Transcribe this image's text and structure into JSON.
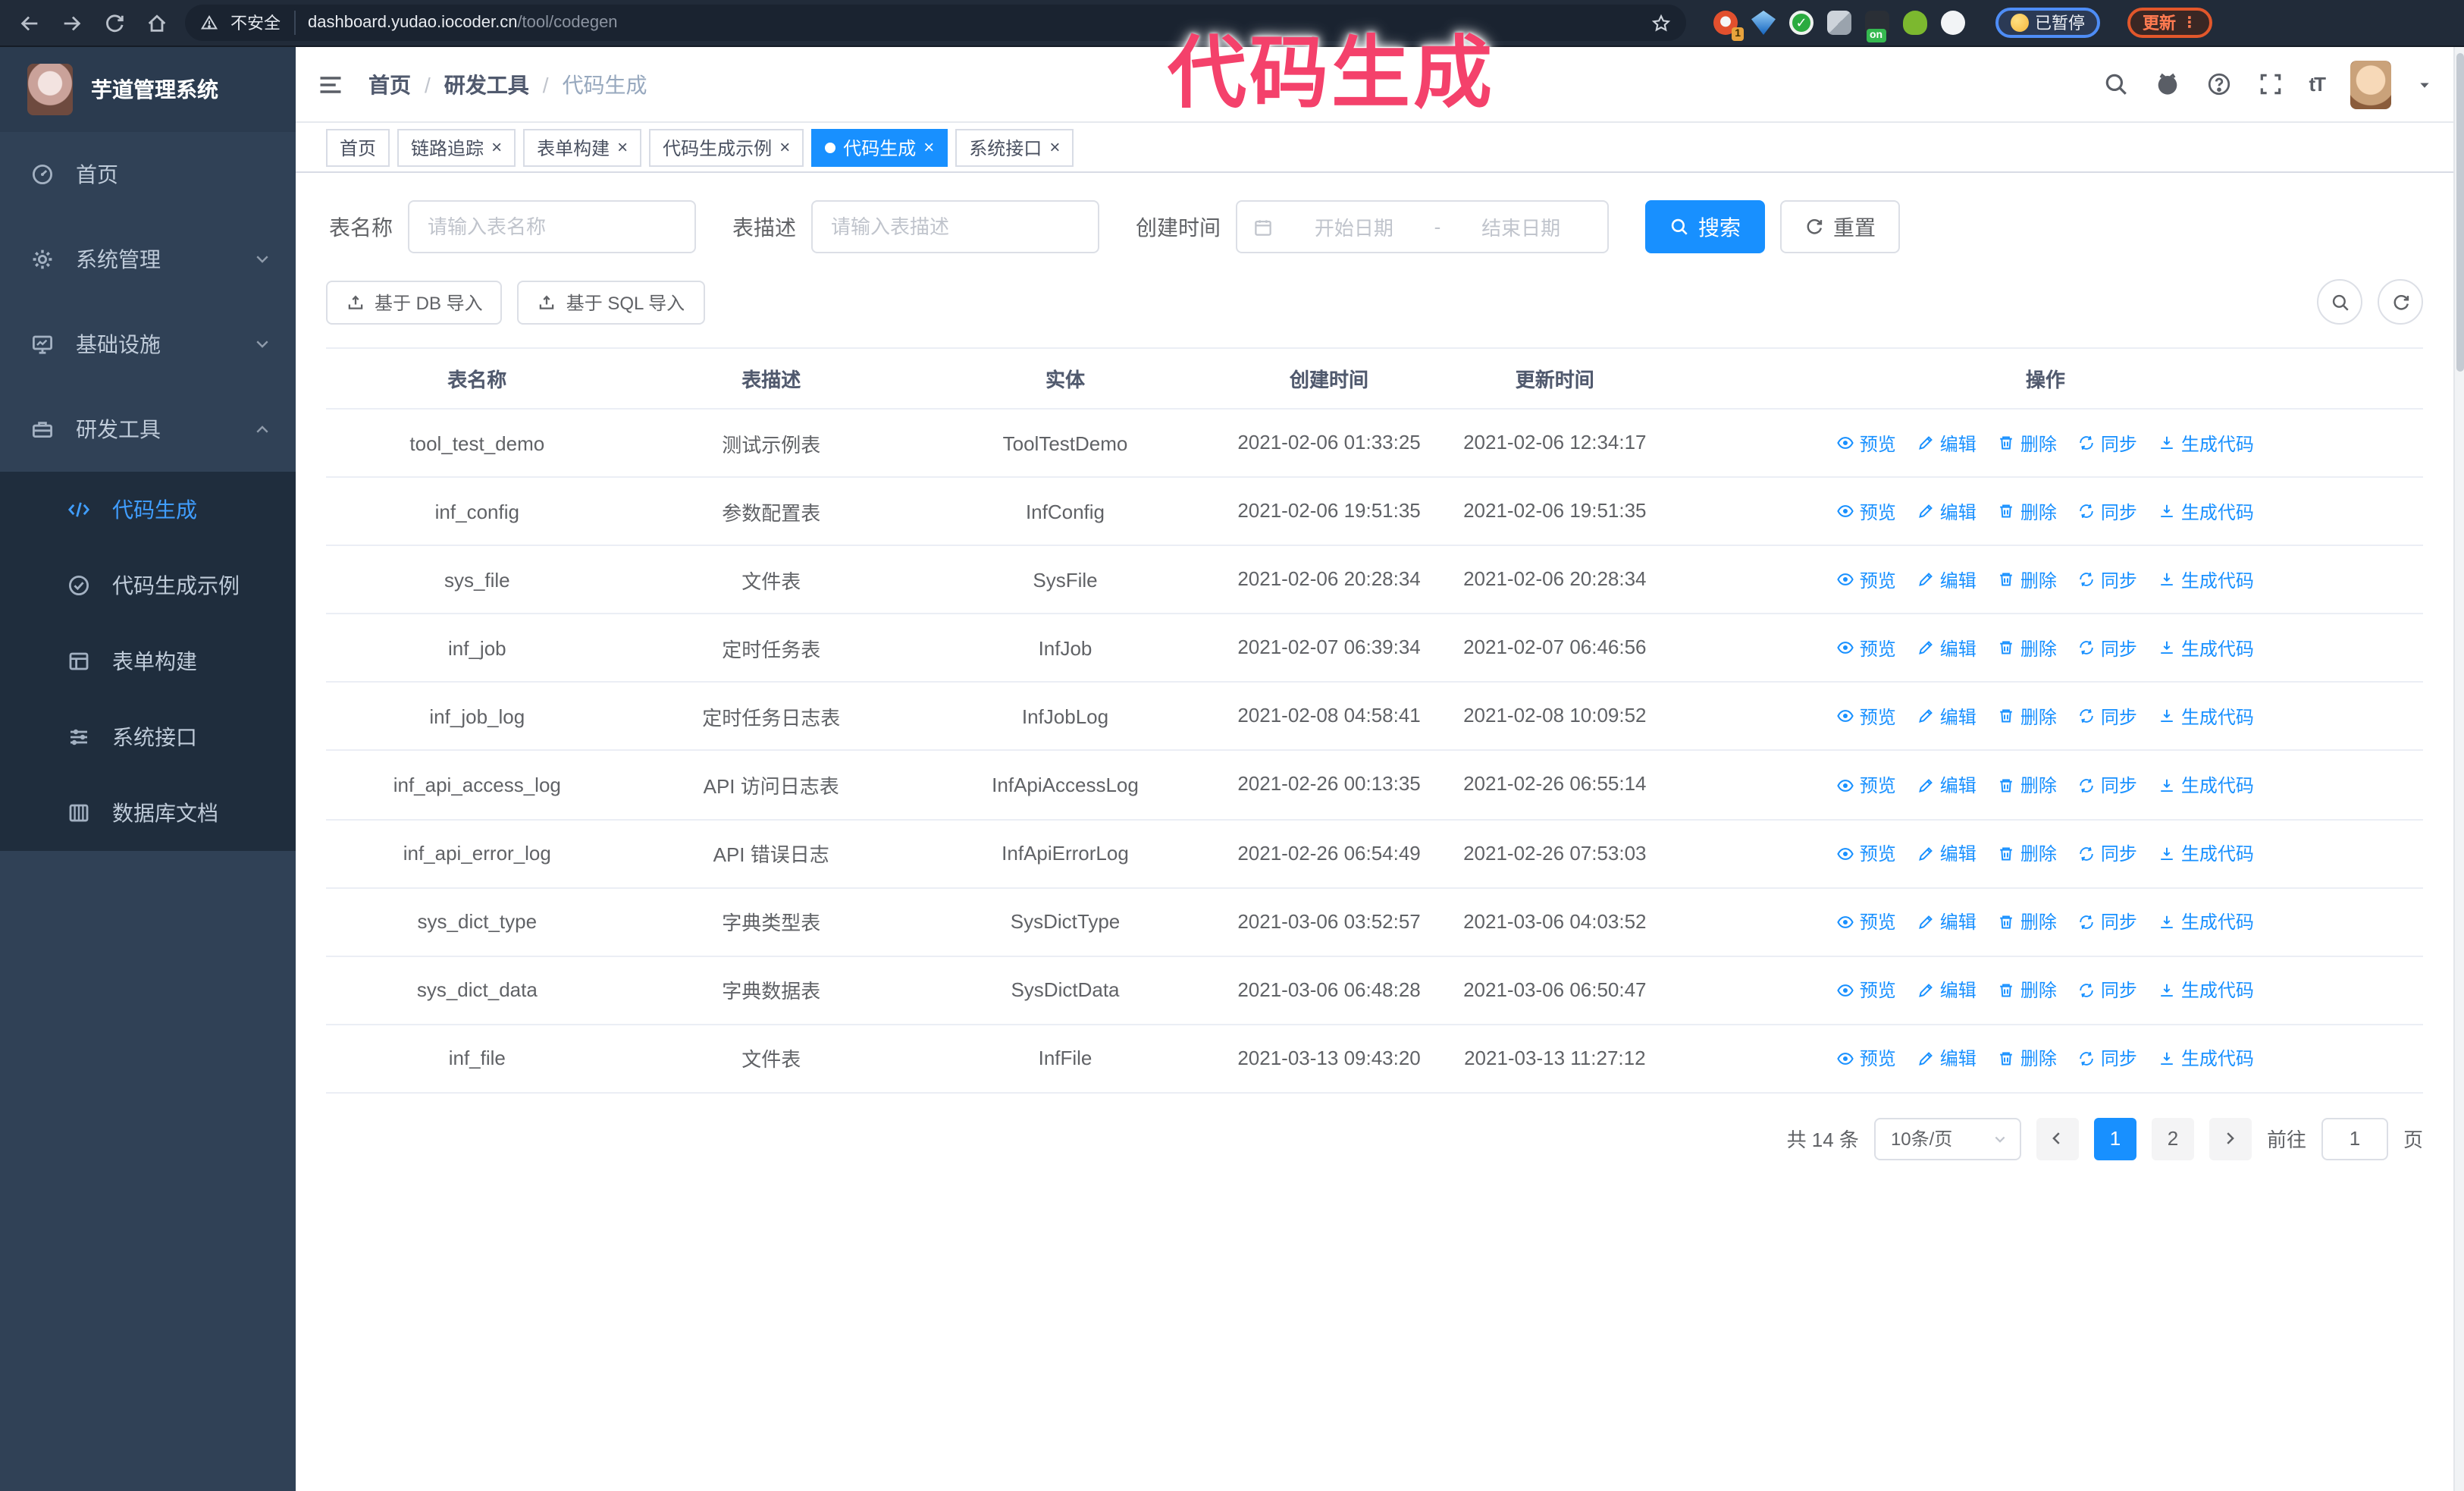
{
  "browser": {
    "security_label": "不安全",
    "url_host": "dashboard.yudao.iocoder.cn",
    "url_path": "/tool/codegen",
    "extension_badge": "1",
    "extension_on_badge": "on",
    "paused_badge": "已暂停",
    "update_button": "更新",
    "update_menu_dots": "⋮"
  },
  "watermark": "代码生成",
  "sidebar": {
    "title": "芋道管理系统",
    "items": [
      {
        "label": "首页",
        "icon": "dashboard",
        "chevron": null
      },
      {
        "label": "系统管理",
        "icon": "gear",
        "chevron": "down"
      },
      {
        "label": "基础设施",
        "icon": "monitor",
        "chevron": "down"
      },
      {
        "label": "研发工具",
        "icon": "toolbox",
        "chevron": "up"
      }
    ],
    "submenu": [
      {
        "label": "代码生成",
        "icon": "code",
        "active": true
      },
      {
        "label": "代码生成示例",
        "icon": "check-circle",
        "active": false
      },
      {
        "label": "表单构建",
        "icon": "form",
        "active": false
      },
      {
        "label": "系统接口",
        "icon": "sliders",
        "active": false
      },
      {
        "label": "数据库文档",
        "icon": "db-doc",
        "active": false
      }
    ]
  },
  "breadcrumb": [
    "首页",
    "研发工具",
    "代码生成"
  ],
  "tabs": [
    {
      "label": "首页",
      "closable": false,
      "active": false
    },
    {
      "label": "链路追踪",
      "closable": true,
      "active": false
    },
    {
      "label": "表单构建",
      "closable": true,
      "active": false
    },
    {
      "label": "代码生成示例",
      "closable": true,
      "active": false
    },
    {
      "label": "代码生成",
      "closable": true,
      "active": true
    },
    {
      "label": "系统接口",
      "closable": true,
      "active": false
    }
  ],
  "search_form": {
    "table_name_label": "表名称",
    "table_name_placeholder": "请输入表名称",
    "table_desc_label": "表描述",
    "table_desc_placeholder": "请输入表描述",
    "create_time_label": "创建时间",
    "start_placeholder": "开始日期",
    "range_separator": "-",
    "end_placeholder": "结束日期",
    "search_button": "搜索",
    "reset_button": "重置"
  },
  "toolbar": {
    "import_db_button": "基于 DB 导入",
    "import_sql_button": "基于 SQL 导入"
  },
  "table": {
    "columns": [
      "表名称",
      "表描述",
      "实体",
      "创建时间",
      "更新时间",
      "操作"
    ],
    "action_labels": [
      "预览",
      "编辑",
      "删除",
      "同步",
      "生成代码"
    ],
    "rows": [
      {
        "name": "tool_test_demo",
        "desc": "测试示例表",
        "entity": "ToolTestDemo",
        "created": "2021-02-06 01:33:25",
        "updated": "2021-02-06 12:34:17"
      },
      {
        "name": "inf_config",
        "desc": "参数配置表",
        "entity": "InfConfig",
        "created": "2021-02-06 19:51:35",
        "updated": "2021-02-06 19:51:35"
      },
      {
        "name": "sys_file",
        "desc": "文件表",
        "entity": "SysFile",
        "created": "2021-02-06 20:28:34",
        "updated": "2021-02-06 20:28:34"
      },
      {
        "name": "inf_job",
        "desc": "定时任务表",
        "entity": "InfJob",
        "created": "2021-02-07 06:39:34",
        "updated": "2021-02-07 06:46:56"
      },
      {
        "name": "inf_job_log",
        "desc": "定时任务日志表",
        "entity": "InfJobLog",
        "created": "2021-02-08 04:58:41",
        "updated": "2021-02-08 10:09:52"
      },
      {
        "name": "inf_api_access_log",
        "desc": "API 访问日志表",
        "entity": "InfApiAccessLog",
        "created": "2021-02-26 00:13:35",
        "updated": "2021-02-26 06:55:14"
      },
      {
        "name": "inf_api_error_log",
        "desc": "API 错误日志",
        "entity": "InfApiErrorLog",
        "created": "2021-02-26 06:54:49",
        "updated": "2021-02-26 07:53:03"
      },
      {
        "name": "sys_dict_type",
        "desc": "字典类型表",
        "entity": "SysDictType",
        "created": "2021-03-06 03:52:57",
        "updated": "2021-03-06 04:03:52"
      },
      {
        "name": "sys_dict_data",
        "desc": "字典数据表",
        "entity": "SysDictData",
        "created": "2021-03-06 06:48:28",
        "updated": "2021-03-06 06:50:47"
      },
      {
        "name": "inf_file",
        "desc": "文件表",
        "entity": "InfFile",
        "created": "2021-03-13 09:43:20",
        "updated": "2021-03-13 11:27:12"
      }
    ]
  },
  "pagination": {
    "total_text": "共 14 条",
    "page_size_text": "10条/页",
    "pages": [
      "1",
      "2"
    ],
    "active_page": "1",
    "goto_label": "前往",
    "goto_value": "1",
    "goto_suffix": "页"
  },
  "colors": {
    "accent": "#1890ff",
    "menu_active": "#409eff",
    "sidebar_bg": "#304156",
    "submenu_bg": "#1f2d3d",
    "watermark_pink": "#f4416b"
  }
}
